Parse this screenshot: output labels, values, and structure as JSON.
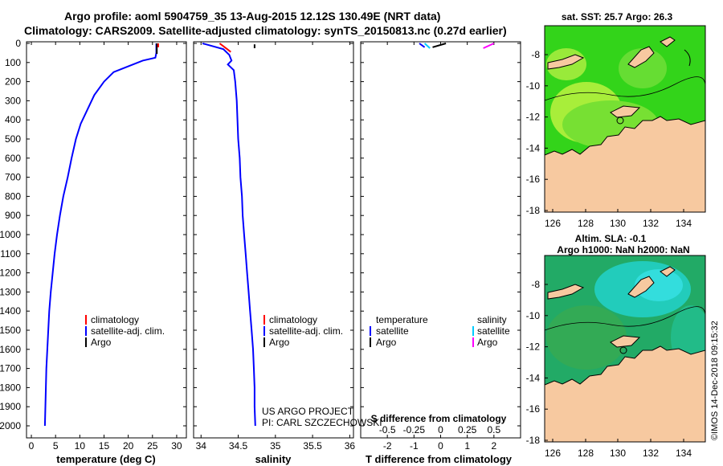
{
  "header": {
    "line1": "Argo profile: aoml 5904759_35 13-Aug-2015 12.12S 130.49E (NRT data)",
    "line2": "Climatology: CARS2009. Satellite-adjusted climatology: synTS_20150813.nc (0.27d earlier)"
  },
  "colors": {
    "argo": "#000000",
    "clim": "#ff0000",
    "satclim": "#0000ff",
    "satT": "#00ccff",
    "satS": "#ff00ff",
    "land": "#f7c9a0"
  },
  "depth_axis": {
    "ticks": [
      0,
      100,
      200,
      300,
      400,
      500,
      600,
      700,
      800,
      900,
      1000,
      1100,
      1200,
      1300,
      1400,
      1500,
      1600,
      1700,
      1800,
      1900,
      2000
    ]
  },
  "chart_data": [
    {
      "type": "line",
      "name": "temperature-profile",
      "xlabel": "temperature (deg C)",
      "xticks": [
        0,
        5,
        10,
        15,
        20,
        25,
        30
      ],
      "xlim": [
        -1,
        32
      ],
      "ylim": [
        0,
        2050
      ],
      "y_inverted": true,
      "series": [
        {
          "name": "satellite-adj. clim.",
          "color": "#0000ff",
          "points": [
            [
              25.8,
              0
            ],
            [
              25.8,
              50
            ],
            [
              25.6,
              75
            ],
            [
              23,
              90
            ],
            [
              19,
              130
            ],
            [
              17,
              150
            ],
            [
              15,
              200
            ],
            [
              13,
              270
            ],
            [
              11.5,
              350
            ],
            [
              10.2,
              420
            ],
            [
              9.2,
              500
            ],
            [
              8.3,
              600
            ],
            [
              7.5,
              700
            ],
            [
              6.6,
              800
            ],
            [
              5.9,
              900
            ],
            [
              5.3,
              1000
            ],
            [
              4.8,
              1100
            ],
            [
              4.4,
              1200
            ],
            [
              4.0,
              1300
            ],
            [
              3.7,
              1400
            ],
            [
              3.5,
              1500
            ],
            [
              3.3,
              1600
            ],
            [
              3.1,
              1700
            ],
            [
              3.0,
              1800
            ],
            [
              2.9,
              1900
            ],
            [
              2.8,
              2000
            ]
          ]
        },
        {
          "name": "Argo",
          "color": "#000000",
          "points": [
            [
              25.9,
              0
            ],
            [
              25.9,
              55
            ]
          ]
        },
        {
          "name": "climatology",
          "color": "#ff0000",
          "points": [
            [
              26.2,
              0
            ],
            [
              26.2,
              20
            ]
          ]
        }
      ],
      "legend": [
        "climatology",
        "satellite-adj. clim.",
        "Argo"
      ]
    },
    {
      "type": "line",
      "name": "salinity-profile",
      "xlabel": "salinity",
      "xticks": [
        34,
        34.5,
        35,
        35.5,
        36
      ],
      "xlim": [
        33.9,
        36.05
      ],
      "ylim": [
        0,
        2050
      ],
      "y_inverted": true,
      "series": [
        {
          "name": "satellite-adj. clim.",
          "color": "#0000ff",
          "points": [
            [
              34.02,
              0
            ],
            [
              34.3,
              30
            ],
            [
              34.38,
              60
            ],
            [
              34.41,
              90
            ],
            [
              34.36,
              110
            ],
            [
              34.44,
              140
            ],
            [
              34.46,
              200
            ],
            [
              34.48,
              300
            ],
            [
              34.49,
              400
            ],
            [
              34.5,
              500
            ],
            [
              34.52,
              600
            ],
            [
              34.53,
              700
            ],
            [
              34.55,
              800
            ],
            [
              34.56,
              900
            ],
            [
              34.58,
              1000
            ],
            [
              34.6,
              1100
            ],
            [
              34.62,
              1200
            ],
            [
              34.64,
              1300
            ],
            [
              34.66,
              1400
            ],
            [
              34.68,
              1500
            ],
            [
              34.7,
              1600
            ],
            [
              34.71,
              1700
            ],
            [
              34.72,
              1800
            ],
            [
              34.72,
              1900
            ],
            [
              34.73,
              2000
            ]
          ]
        },
        {
          "name": "climatology",
          "color": "#ff0000",
          "points": [
            [
              34.25,
              0
            ],
            [
              34.35,
              30
            ],
            [
              34.4,
              45
            ]
          ]
        },
        {
          "name": "Argo",
          "color": "#000000",
          "points": [
            [
              34.72,
              5
            ],
            [
              34.72,
              25
            ]
          ]
        }
      ],
      "legend": [
        "climatology",
        "satellite-adj. clim.",
        "Argo"
      ],
      "annotations": [
        "US ARGO PROJECT",
        "PI: CARL SZCZECHOWSKI"
      ]
    },
    {
      "type": "line",
      "name": "difference-profile",
      "xlabel": "T difference from climatology",
      "xlabel2": "S difference from climatology",
      "xticks_T": [
        "-2",
        "-1",
        "0",
        "1",
        "2"
      ],
      "xticks_S": [
        "-0.5",
        "-0.25",
        "0",
        "0.25",
        "0.5"
      ],
      "xlim": [
        -3,
        3
      ],
      "ylim": [
        0,
        2050
      ],
      "y_inverted": true,
      "series": [
        {
          "name": "temperature satellite",
          "color": "#0000ff",
          "points": [
            [
              -0.8,
              0
            ],
            [
              -0.6,
              20
            ]
          ]
        },
        {
          "name": "salinity satellite",
          "color": "#00ccff",
          "points": [
            [
              -0.6,
              0
            ],
            [
              -0.4,
              25
            ]
          ]
        },
        {
          "name": "temperature Argo",
          "color": "#000000",
          "points": [
            [
              -0.3,
              20
            ],
            [
              0.2,
              0
            ]
          ]
        },
        {
          "name": "salinity Argo",
          "color": "#ff00ff",
          "points": [
            [
              1.6,
              25
            ],
            [
              2.0,
              0
            ]
          ]
        }
      ],
      "legend_left_title": "temperature",
      "legend_right_title": "salinity",
      "legend_left": [
        "satellite",
        "Argo"
      ],
      "legend_right": [
        "satellite",
        "Argo"
      ]
    }
  ],
  "maps": {
    "sst": {
      "title": "sat. SST: 25.7 Argo: 26.3",
      "xticks": [
        "126",
        "128",
        "130",
        "132",
        "134"
      ],
      "yticks": [
        "-8",
        "-10",
        "-12",
        "-14",
        "-16",
        "-18"
      ]
    },
    "sla": {
      "title1": "Altim. SLA: -0.1",
      "title2": "Argo h1000: NaN h2000: NaN",
      "xticks": [
        "126",
        "128",
        "130",
        "132",
        "134"
      ],
      "yticks": [
        "-8",
        "-10",
        "-12",
        "-14",
        "-16",
        "-18"
      ]
    }
  },
  "credit": "©IMOS 14-Dec-2018 09:15:32"
}
